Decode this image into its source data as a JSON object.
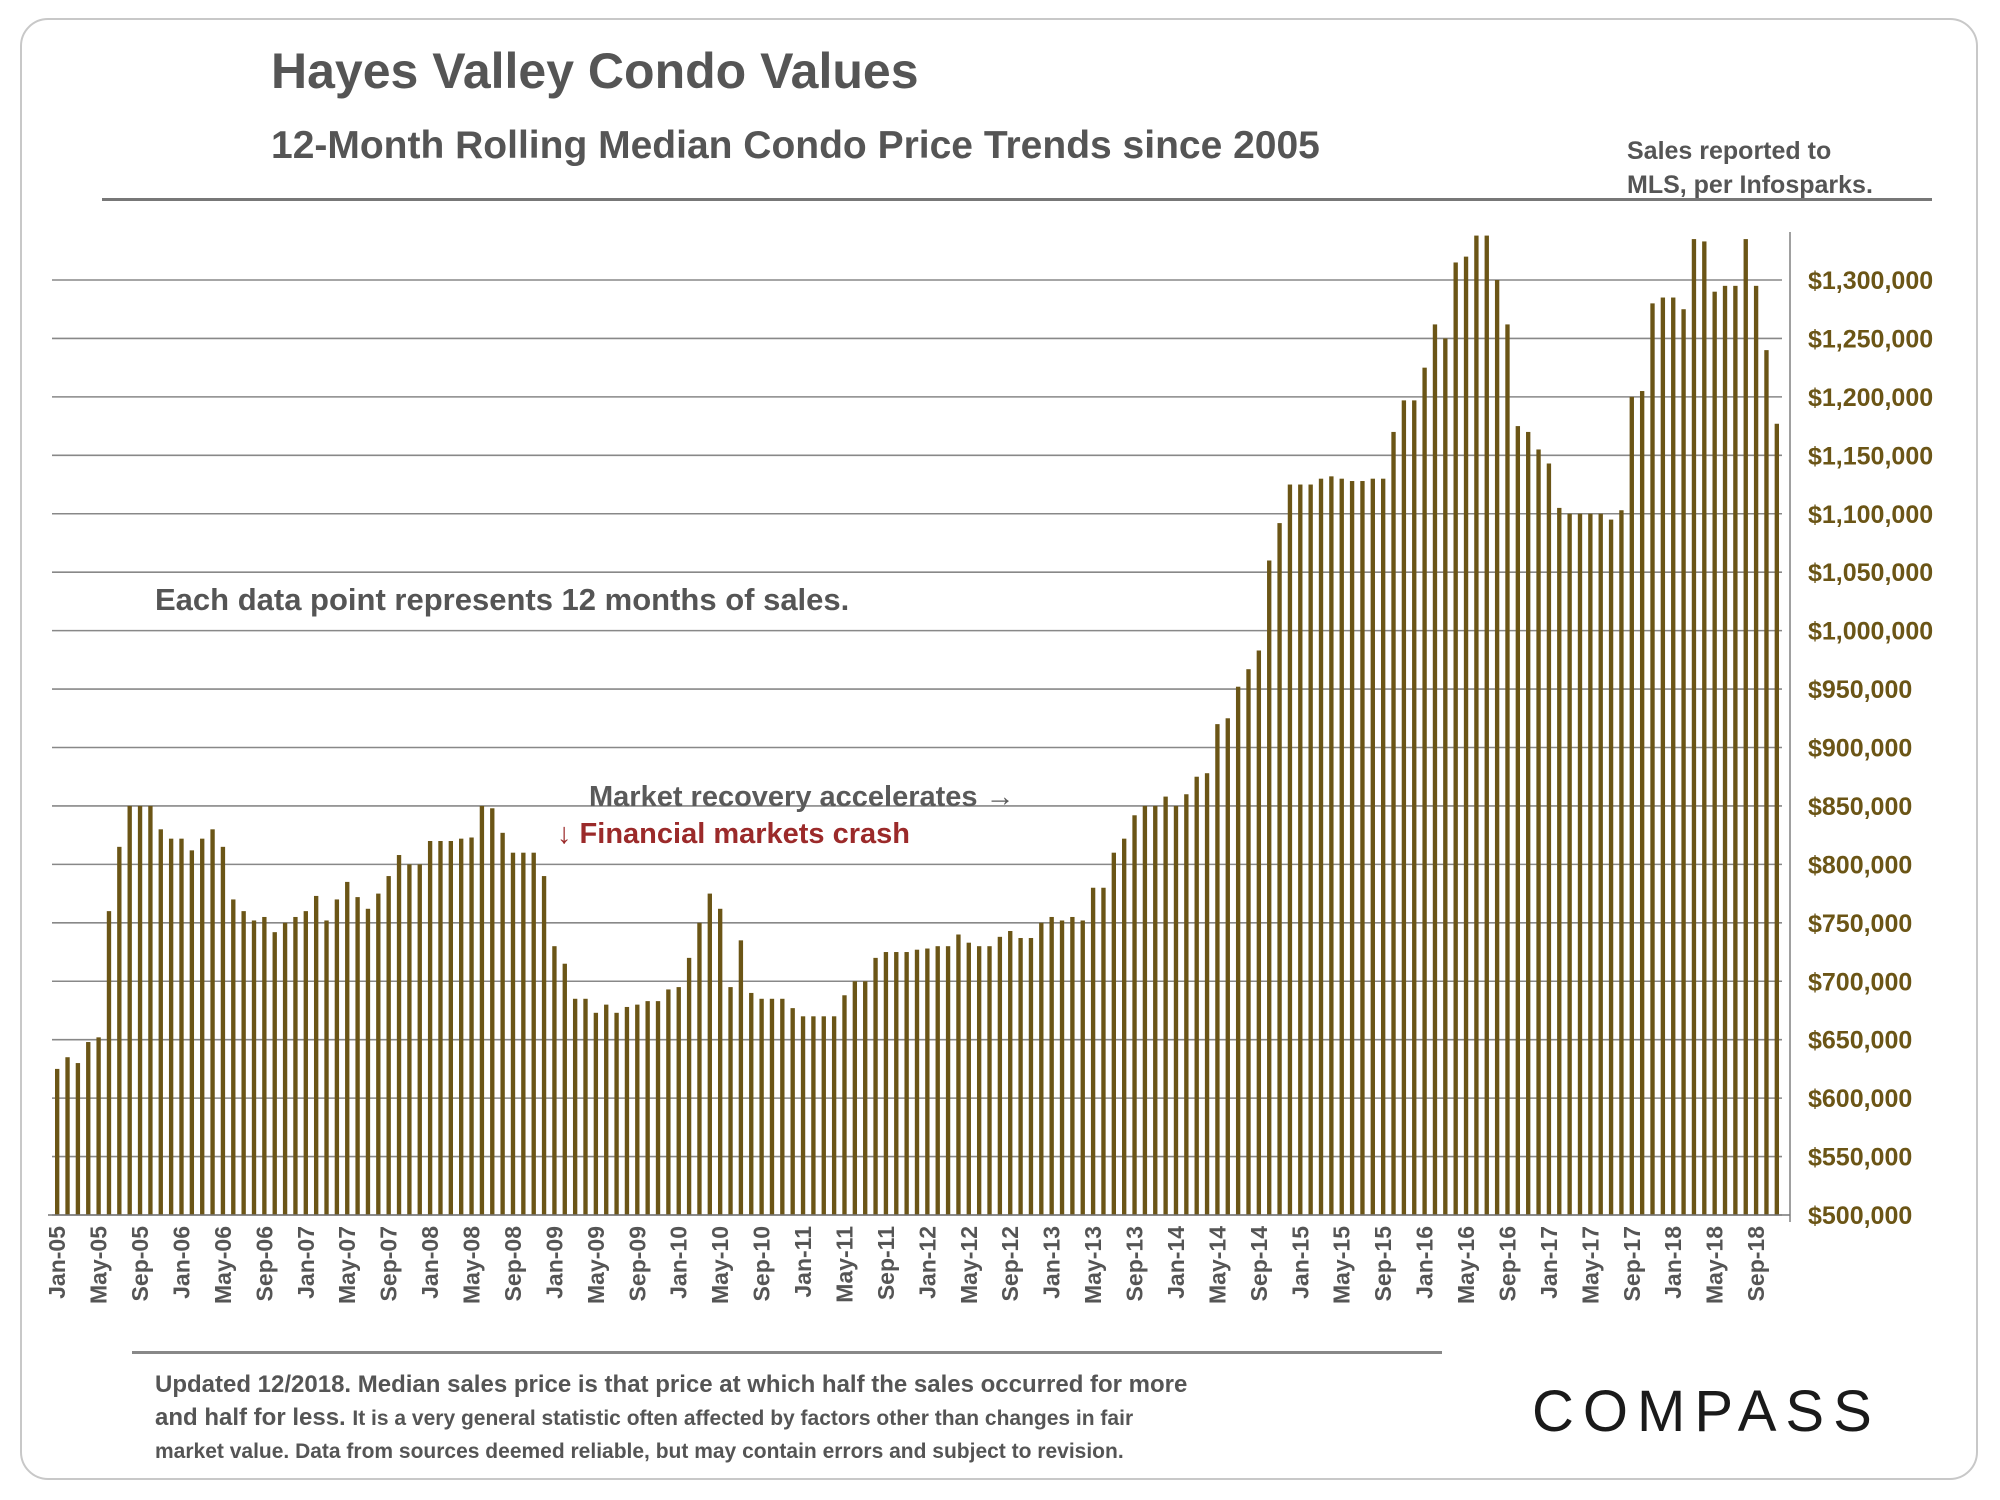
{
  "header": {
    "title": "Hayes Valley Condo Values",
    "subtitle": "12-Month Rolling Median Condo Price Trends since 2005",
    "source_line1": "Sales reported to",
    "source_line2": "MLS, per Infosparks."
  },
  "notes": {
    "data_point": "Each data point represents 12 months of sales.",
    "recovery": "Market recovery accelerates →",
    "crash": "↓ Financial markets crash"
  },
  "footer": {
    "line1": "Updated 12/2018. Median sales price is that price at which half the sales occurred for more",
    "line2a": "and half for less.",
    "line2b": "It is a very general statistic often affected by factors other than changes in fair",
    "line3": "market value. Data from sources deemed reliable, but may contain errors and subject to revision."
  },
  "logo": {
    "text": "COMPASS"
  },
  "colors": {
    "bar": "#6b5516",
    "axis_text": "#6b5516",
    "grid": "#888888"
  },
  "chart_data": {
    "type": "bar",
    "title": "Hayes Valley Condo Values",
    "subtitle": "12-Month Rolling Median Condo Price Trends since 2005",
    "xlabel": "",
    "ylabel": "",
    "ylim": [
      500000,
      1340000
    ],
    "y_tick_values": [
      500000,
      550000,
      600000,
      650000,
      700000,
      750000,
      800000,
      850000,
      900000,
      950000,
      1000000,
      1050000,
      1100000,
      1150000,
      1200000,
      1250000,
      1300000
    ],
    "y_tick_labels": [
      "$500,000",
      "$550,000",
      "$600,000",
      "$650,000",
      "$700,000",
      "$750,000",
      "$800,000",
      "$850,000",
      "$900,000",
      "$950,000",
      "$1,000,000",
      "$1,050,000",
      "$1,100,000",
      "$1,150,000",
      "$1,200,000",
      "$1,250,000",
      "$1,300,000"
    ],
    "y_axis_position": "right",
    "grid": true,
    "x_tick_labels": [
      "Jan-05",
      "May-05",
      "Sep-05",
      "Jan-06",
      "May-06",
      "Sep-06",
      "Jan-07",
      "May-07",
      "Sep-07",
      "Jan-08",
      "May-08",
      "Sep-08",
      "Jan-09",
      "May-09",
      "Sep-09",
      "Jan-10",
      "May-10",
      "Sep-10",
      "Jan-11",
      "May-11",
      "Sep-11",
      "Jan-12",
      "May-12",
      "Sep-12",
      "Jan-13",
      "May-13",
      "Sep-13",
      "Jan-14",
      "May-14",
      "Sep-14",
      "Jan-15",
      "May-15",
      "Sep-15",
      "Jan-16",
      "May-16",
      "Sep-16",
      "Jan-17",
      "May-17",
      "Sep-17",
      "Jan-18",
      "May-18",
      "Sep-18"
    ],
    "x_tick_every": 4,
    "series": [
      {
        "name": "12-Month Rolling Median Condo Price",
        "start": "Jan-05",
        "frequency": "monthly",
        "values": [
          625000,
          635000,
          630000,
          648000,
          652000,
          760000,
          815000,
          850000,
          850000,
          850000,
          830000,
          822000,
          822000,
          812000,
          822000,
          830000,
          815000,
          770000,
          760000,
          752000,
          755000,
          742000,
          750000,
          755000,
          760000,
          773000,
          752000,
          770000,
          785000,
          772000,
          762000,
          775000,
          790000,
          808000,
          800000,
          800000,
          820000,
          820000,
          820000,
          822000,
          823000,
          850000,
          848000,
          827000,
          810000,
          810000,
          810000,
          790000,
          730000,
          715000,
          685000,
          685000,
          673000,
          680000,
          673000,
          678000,
          680000,
          683000,
          683000,
          693000,
          695000,
          720000,
          750000,
          775000,
          762000,
          695000,
          735000,
          690000,
          685000,
          685000,
          685000,
          677000,
          670000,
          670000,
          670000,
          670000,
          688000,
          700000,
          700000,
          720000,
          725000,
          725000,
          725000,
          727000,
          728000,
          730000,
          730000,
          740000,
          733000,
          730000,
          730000,
          738000,
          743000,
          737000,
          737000,
          750000,
          755000,
          752000,
          755000,
          752000,
          780000,
          780000,
          810000,
          822000,
          842000,
          850000,
          850000,
          858000,
          850000,
          860000,
          875000,
          878000,
          920000,
          925000,
          952000,
          967000,
          983000,
          1060000,
          1092000,
          1125000,
          1125000,
          1125000,
          1130000,
          1132000,
          1130000,
          1128000,
          1128000,
          1130000,
          1130000,
          1170000,
          1197000,
          1197000,
          1225000,
          1262000,
          1250000,
          1315000,
          1320000,
          1338000,
          1338000,
          1300000,
          1262000,
          1175000,
          1170000,
          1155000,
          1143000,
          1105000,
          1100000,
          1100000,
          1100000,
          1100000,
          1095000,
          1103000,
          1200000,
          1205000,
          1280000,
          1285000,
          1285000,
          1275000,
          1335000,
          1333000,
          1290000,
          1295000,
          1295000,
          1335000,
          1295000,
          1240000,
          1177000
        ]
      }
    ]
  }
}
